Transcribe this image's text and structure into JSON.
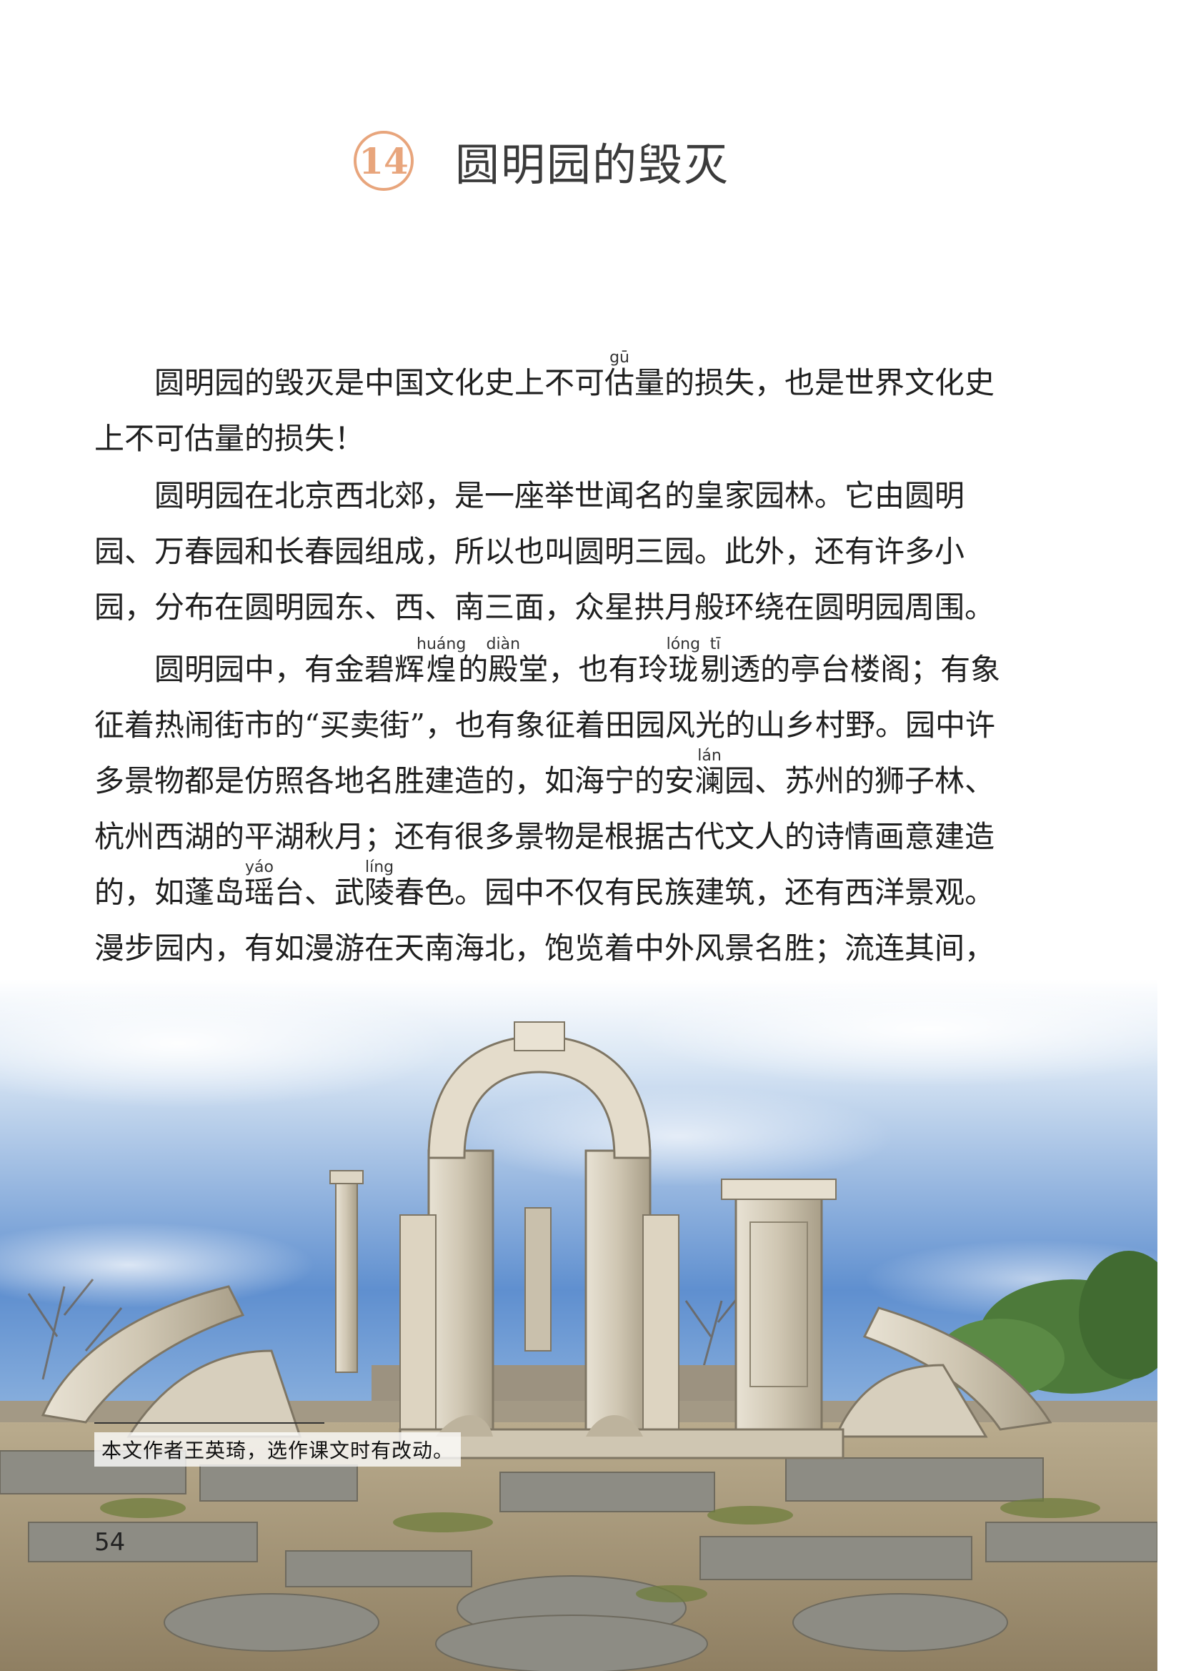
{
  "lesson": {
    "number": "14",
    "title": "圆明园的毁灭"
  },
  "paragraphs": [
    {
      "segments": [
        {
          "text": "圆明园的毁灭是中国文化史上不可"
        },
        {
          "base": "估",
          "ruby": "gū"
        },
        {
          "text": "量的损失，也是世界文化史上不可估量的损失！"
        }
      ]
    },
    {
      "segments": [
        {
          "text": "圆明园在北京西北郊，是一座举世闻名的皇家园林。它由圆明园、万春园和长春园组成，所以也叫圆明三园。此外，还有许多小园，分布在圆明园东、西、南三面，众星拱月般环绕在圆明园周围。"
        }
      ]
    },
    {
      "segments": [
        {
          "text": "圆明园中，有金碧辉"
        },
        {
          "base": "煌",
          "ruby": "huáng"
        },
        {
          "text": "的"
        },
        {
          "base": "殿",
          "ruby": "diàn"
        },
        {
          "text": "堂，也有玲"
        },
        {
          "base": "珑",
          "ruby": "lóng"
        },
        {
          "base": "剔",
          "ruby": "tī"
        },
        {
          "text": "透的亭台楼阁；有象征着热闹街市的“买卖街”，也有象征着田园风光的山乡村野。园中许多景物都是仿照各地名胜建造的，如海宁的安"
        },
        {
          "base": "澜",
          "ruby": "lán"
        },
        {
          "text": "园、苏州的狮子林、杭州西湖的平湖秋月；还有很多景物是根据古代文人的诗情画意建造的，如蓬岛"
        },
        {
          "base": "瑶",
          "ruby": "yáo"
        },
        {
          "text": "台、武"
        },
        {
          "base": "陵",
          "ruby": "líng"
        },
        {
          "text": "春色。园中不仅有民族建筑，还有西洋景观。漫步园内，有如漫游在天南海北，饱览着中外风景名胜；流连其间，仿佛置身在幻想的境界里。"
        }
      ]
    }
  ],
  "caption": "本文作者王英琦，选作课文时有改动。",
  "page_number": "54"
}
